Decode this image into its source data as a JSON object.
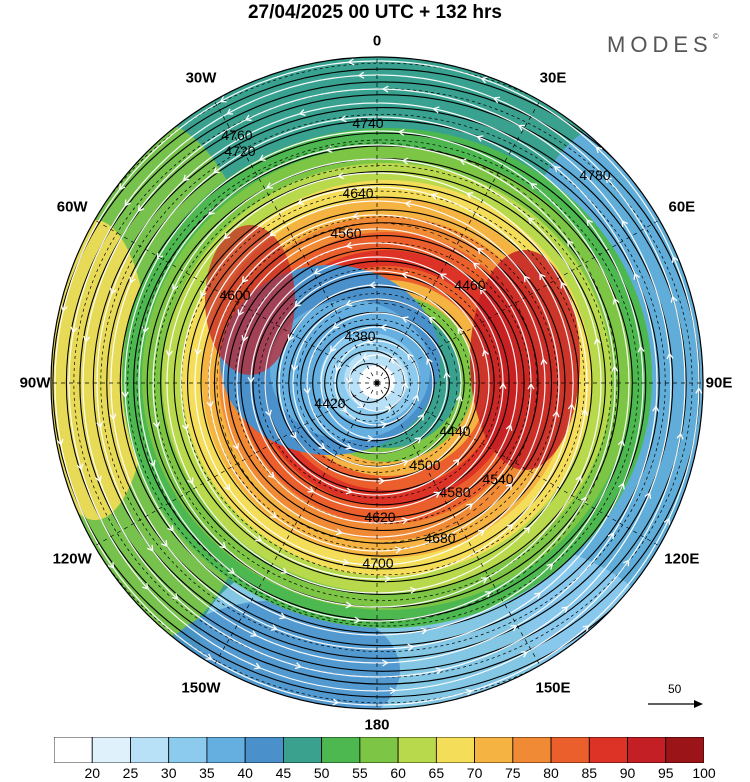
{
  "title": "27/04/2025  00 UTC  + 132 hrs",
  "logo": "MODES",
  "logo_mark": "©",
  "longitude_labels": [
    "0",
    "30E",
    "60E",
    "90E",
    "120E",
    "150E",
    "180",
    "150W",
    "120W",
    "90W",
    "60W",
    "30W"
  ],
  "contour_labels": {
    "r1": "4380",
    "r2": "4420",
    "r3": "4440",
    "r4": "4460",
    "r5": "4500",
    "r6": "4540",
    "r7": "4560",
    "r8": "4580",
    "r9": "4600",
    "r10": "4620",
    "r11": "4640",
    "r12": "4680",
    "r13": "4700",
    "r14": "4720",
    "r15": "4740",
    "r16": "4760",
    "r17": "4780"
  },
  "colorbar": {
    "ticks": [
      "20",
      "25",
      "30",
      "35",
      "40",
      "45",
      "50",
      "55",
      "60",
      "65",
      "70",
      "75",
      "80",
      "85",
      "90",
      "95",
      "100"
    ],
    "colors": [
      "#ffffff",
      "#dff1fb",
      "#b8e0f6",
      "#8ccbee",
      "#64aee0",
      "#4a91cc",
      "#3aa18f",
      "#4db84f",
      "#7dc545",
      "#b9d94c",
      "#f4dd58",
      "#f5b342",
      "#f08a35",
      "#ea5f2c",
      "#dd3326",
      "#c41f24",
      "#9b1518"
    ]
  },
  "vector_reference": "50"
}
